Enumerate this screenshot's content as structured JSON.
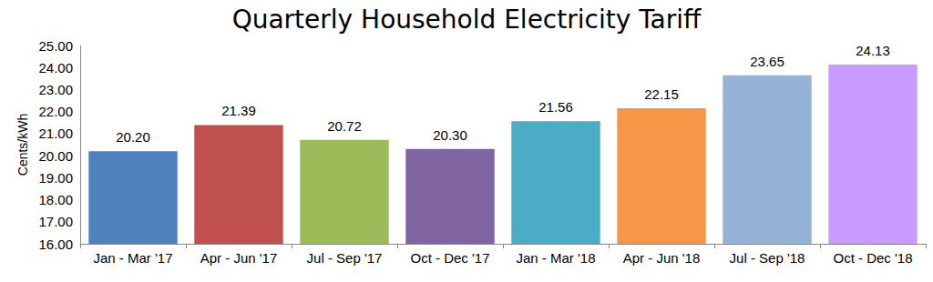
{
  "chart_data": {
    "type": "bar",
    "title": "Quarterly Household Electricity Tariff",
    "y_label": "Cents/kWh",
    "categories": [
      "Jan - Mar '17",
      "Apr - Jun '17",
      "Jul - Sep '17",
      "Oct - Dec '17",
      "Jan - Mar '18",
      "Apr - Jun '18",
      "Jul - Sep '18",
      "Oct - Dec '18"
    ],
    "values": [
      20.2,
      21.39,
      20.72,
      20.3,
      21.56,
      22.15,
      23.65,
      24.13
    ],
    "value_labels": [
      "20.20",
      "21.39",
      "20.72",
      "20.30",
      "21.56",
      "22.15",
      "23.65",
      "24.13"
    ],
    "colors": [
      "#4f81bd",
      "#c0504d",
      "#9bbb59",
      "#8064a2",
      "#4bacc6",
      "#f79646",
      "#95b3d7",
      "#c99bff"
    ],
    "ylim": [
      16,
      25
    ],
    "yticks": [
      {
        "value": 16,
        "label": "16.00"
      },
      {
        "value": 17,
        "label": "17.00"
      },
      {
        "value": 18,
        "label": "18.00"
      },
      {
        "value": 19,
        "label": "19.00"
      },
      {
        "value": 20,
        "label": "20.00"
      },
      {
        "value": 21,
        "label": "21.00"
      },
      {
        "value": 22,
        "label": "22.00"
      },
      {
        "value": 23,
        "label": "23.00"
      },
      {
        "value": 24,
        "label": "24.00"
      },
      {
        "value": 25,
        "label": "25.00"
      }
    ],
    "data_labels": true,
    "grid": false
  }
}
